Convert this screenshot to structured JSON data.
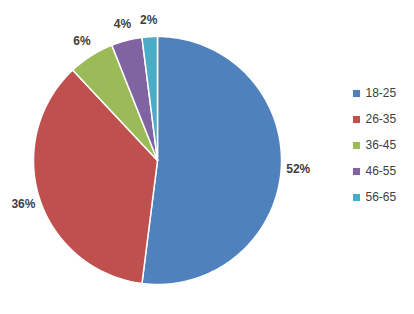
{
  "chart_data": {
    "type": "pie",
    "categories": [
      "18-25",
      "26-35",
      "36-45",
      "46-55",
      "56-65"
    ],
    "values": [
      52,
      36,
      6,
      4,
      2
    ],
    "value_labels": [
      "52%",
      "36%",
      "6%",
      "4%",
      "2%"
    ],
    "colors": [
      "#4f81bd",
      "#c0504d",
      "#9bbb59",
      "#8064a2",
      "#4bacc6"
    ],
    "data_labels": true,
    "legend": "right"
  }
}
